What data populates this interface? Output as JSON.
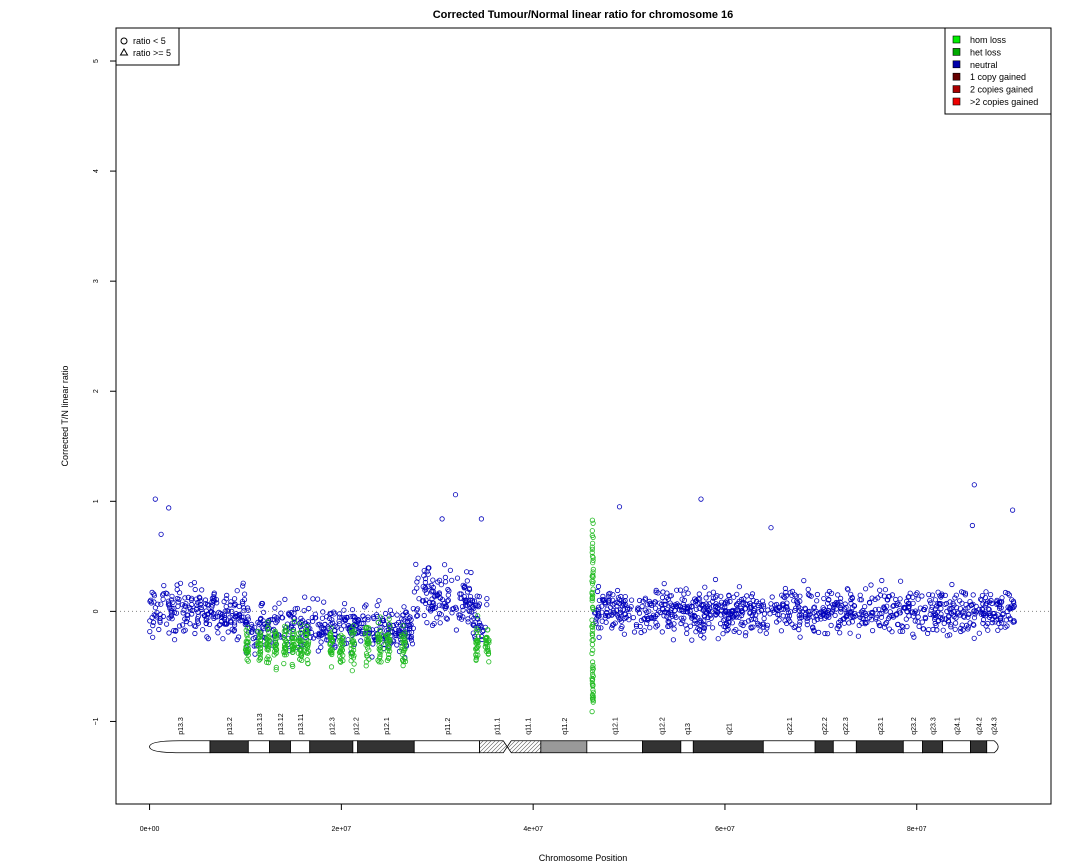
{
  "chart_data": {
    "type": "scatter",
    "title": "Corrected Tumour/Normal linear ratio for chromosome  16",
    "xlabel": "Chromosome Position",
    "ylabel": "Corrected T/N linear ratio",
    "xlim": [
      -3500000,
      94000000
    ],
    "ylim": [
      -1.75,
      5.3
    ],
    "xticks": [
      0,
      20000000,
      40000000,
      60000000,
      80000000
    ],
    "xtick_labels": [
      "0e+00",
      "2e+07",
      "4e+07",
      "6e+07",
      "8e+07"
    ],
    "yticks": [
      -1,
      0,
      1,
      2,
      3,
      4,
      5
    ],
    "ytick_labels": [
      "−1",
      "0",
      "1",
      "2",
      "3",
      "4",
      "5"
    ],
    "reference_line": 0,
    "shape_legend": {
      "placement": "top-left",
      "entries": [
        {
          "symbol": "circle",
          "label": "ratio < 5"
        },
        {
          "symbol": "triangle",
          "label": "ratio >= 5"
        }
      ]
    },
    "legend": {
      "placement": "top-right",
      "entries": [
        {
          "label": "hom loss",
          "color": "#00ee00"
        },
        {
          "label": "het loss",
          "color": "#00aa00"
        },
        {
          "label": "neutral",
          "color": "#0000aa"
        },
        {
          "label": "1 copy gained",
          "color": "#660000"
        },
        {
          "label": "2 copies gained",
          "color": "#aa0000"
        },
        {
          "label": ">2 copies gained",
          "color": "#ee0000"
        }
      ]
    },
    "colors": {
      "neutral": "#0000bb",
      "het_loss": "#22bb22"
    },
    "series": [
      {
        "name": "neutral",
        "segments": [
          {
            "start": 0,
            "end": 10000000,
            "mean": 0.0,
            "spread": 0.18
          },
          {
            "start": 10000000,
            "end": 27600000,
            "mean": -0.15,
            "spread": 0.17
          },
          {
            "start": 27600000,
            "end": 33600000,
            "mean": 0.12,
            "spread": 0.2
          },
          {
            "start": 33600000,
            "end": 35200000,
            "mean": -0.05,
            "spread": 0.17
          },
          {
            "start": 46400000,
            "end": 90200000,
            "mean": 0.0,
            "spread": 0.16
          }
        ],
        "outliers": [
          {
            "x": 600000,
            "y": 1.02
          },
          {
            "x": 2000000,
            "y": 0.94
          },
          {
            "x": 31900000,
            "y": 1.06
          },
          {
            "x": 30500000,
            "y": 0.84
          },
          {
            "x": 34600000,
            "y": 0.84
          },
          {
            "x": 57500000,
            "y": 1.02
          },
          {
            "x": 49000000,
            "y": 0.95
          },
          {
            "x": 86000000,
            "y": 1.15
          },
          {
            "x": 90000000,
            "y": 0.92
          },
          {
            "x": 85800000,
            "y": 0.78
          },
          {
            "x": 64800000,
            "y": 0.76
          },
          {
            "x": 1200000,
            "y": 0.7
          }
        ]
      },
      {
        "name": "het loss",
        "bands": [
          [
            10000000,
            10300000
          ],
          [
            11300000,
            11600000
          ],
          [
            12200000,
            12500000
          ],
          [
            13000000,
            13300000
          ],
          [
            14000000,
            14300000
          ],
          [
            14800000,
            15100000
          ],
          [
            15500000,
            15900000
          ],
          [
            16200000,
            16600000
          ],
          [
            18800000,
            19100000
          ],
          [
            19800000,
            20200000
          ],
          [
            21000000,
            21400000
          ],
          [
            22500000,
            22900000
          ],
          [
            23800000,
            24200000
          ],
          [
            24700000,
            25100000
          ],
          [
            26300000,
            26700000
          ],
          [
            34000000,
            34300000
          ],
          [
            35000000,
            35400000
          ]
        ],
        "mean": -0.3,
        "spread": 0.13,
        "vertical_spike": {
          "x": 46200000,
          "ymin": -0.92,
          "ymax": 0.85
        }
      }
    ],
    "ideogram": {
      "y_level": -1.23,
      "bands": [
        {
          "name": "p13.3",
          "start": 0,
          "end": 6300000,
          "stain": "gneg"
        },
        {
          "name": "p13.2",
          "start": 6300000,
          "end": 10300000,
          "stain": "gpos"
        },
        {
          "name": "p13.13",
          "start": 10300000,
          "end": 12500000,
          "stain": "gneg"
        },
        {
          "name": "p13.12",
          "start": 12500000,
          "end": 14700000,
          "stain": "gpos"
        },
        {
          "name": "p13.11",
          "start": 14700000,
          "end": 16700000,
          "stain": "gneg"
        },
        {
          "name": "p12.3",
          "start": 16700000,
          "end": 21200000,
          "stain": "gpos"
        },
        {
          "name": "p12.2",
          "start": 21200000,
          "end": 21700000,
          "stain": "gneg"
        },
        {
          "name": "p12.1",
          "start": 21700000,
          "end": 27600000,
          "stain": "gpos"
        },
        {
          "name": "p11.2",
          "start": 27600000,
          "end": 34400000,
          "stain": "gneg"
        },
        {
          "name": "p11.1",
          "start": 34400000,
          "end": 38000000,
          "stain": "acen"
        },
        {
          "name": "q11.1",
          "start": 38000000,
          "end": 40800000,
          "stain": "acen"
        },
        {
          "name": "q11.2",
          "start": 40800000,
          "end": 45600000,
          "stain": "gvar"
        },
        {
          "name": "q12.1",
          "start": 45600000,
          "end": 51400000,
          "stain": "gneg"
        },
        {
          "name": "q12.2",
          "start": 51400000,
          "end": 55400000,
          "stain": "gpos"
        },
        {
          "name": "q13",
          "start": 55400000,
          "end": 56700000,
          "stain": "gneg"
        },
        {
          "name": "q21",
          "start": 56700000,
          "end": 64000000,
          "stain": "gpos"
        },
        {
          "name": "q22.1",
          "start": 64000000,
          "end": 69400000,
          "stain": "gneg"
        },
        {
          "name": "q22.2",
          "start": 69400000,
          "end": 71300000,
          "stain": "gpos"
        },
        {
          "name": "q22.3",
          "start": 71300000,
          "end": 73700000,
          "stain": "gneg"
        },
        {
          "name": "q23.1",
          "start": 73700000,
          "end": 78600000,
          "stain": "gpos"
        },
        {
          "name": "q23.2",
          "start": 78600000,
          "end": 80600000,
          "stain": "gneg"
        },
        {
          "name": "q23.3",
          "start": 80600000,
          "end": 82700000,
          "stain": "gpos"
        },
        {
          "name": "q24.1",
          "start": 82700000,
          "end": 85600000,
          "stain": "gneg"
        },
        {
          "name": "q24.2",
          "start": 85600000,
          "end": 87300000,
          "stain": "gpos"
        },
        {
          "name": "q24.3",
          "start": 87300000,
          "end": 88700000,
          "stain": "gneg"
        }
      ],
      "end": 88700000
    }
  }
}
